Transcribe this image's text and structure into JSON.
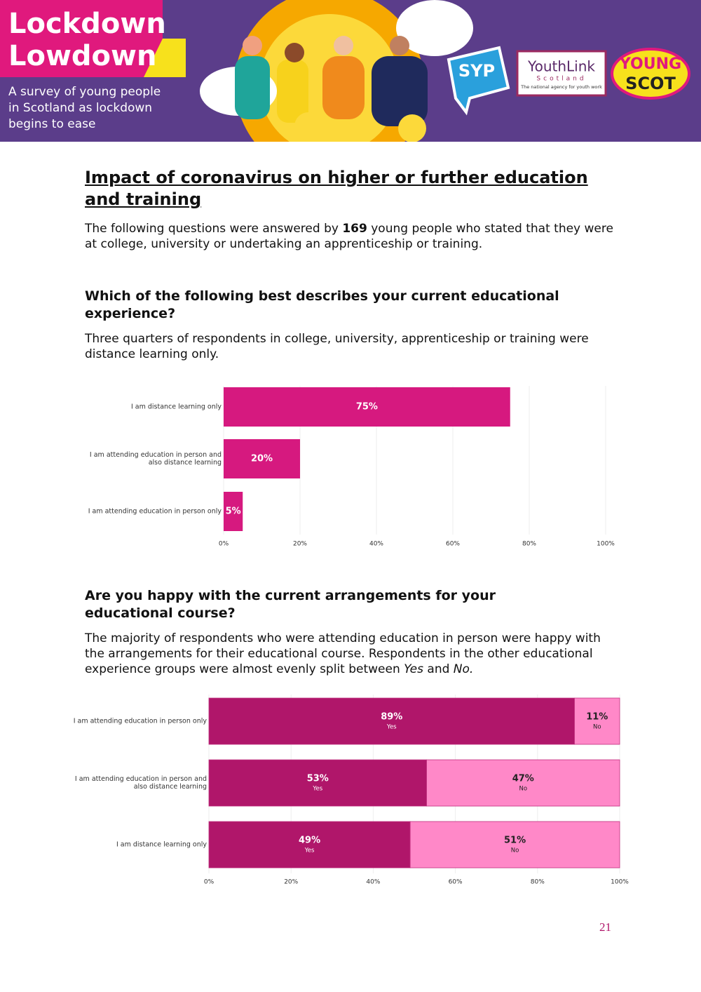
{
  "header": {
    "title_lines": [
      "Lockdown",
      "Lowdown"
    ],
    "subtitle_lines": [
      "A survey of young people",
      "in Scotland as lockdown",
      "begins to ease"
    ],
    "logos": {
      "syp": "SYP",
      "youthlink": "YouthLink",
      "youthlink_sub": "Scotland",
      "youthlink_tag": "The national agency for youth work",
      "youngscot_top": "YOUNG",
      "youngscot_bottom": "SCOT"
    }
  },
  "heading": "Impact of coronavirus on higher or further education and training",
  "intro": {
    "before": "The following questions were answered by ",
    "bold": "169",
    "after": " young people who stated that they were at college, university or undertaking an apprenticeship or training."
  },
  "question1": {
    "title": "Which of the following best describes your current educational experience?",
    "body": "Three quarters of respondents in college, university, apprenticeship or training were distance learning only."
  },
  "question2": {
    "title": "Are you happy with the current arrangements for your educational course?",
    "body": [
      "The majority of respondents who were attending education in person were happy with the arrangements for their educational course. Respondents in the other educational experience groups were almost evenly split between ",
      "Yes",
      " and ",
      "No."
    ]
  },
  "chart_data": [
    {
      "type": "bar",
      "orientation": "horizontal",
      "categories": [
        "I am distance learning only",
        "I am attending education in person and also distance learning",
        "I am attending education in person only"
      ],
      "values": [
        75,
        20,
        5
      ],
      "value_labels": [
        "75%",
        "20%",
        "5%"
      ],
      "color": "#d6197f",
      "xlim": [
        0,
        100
      ],
      "xticks": [
        {
          "value": 0,
          "label": "0%"
        },
        {
          "value": 20,
          "label": "20%"
        },
        {
          "value": 40,
          "label": "40%"
        },
        {
          "value": 60,
          "label": "60%"
        },
        {
          "value": 80,
          "label": "80%"
        },
        {
          "value": 100,
          "label": "100%"
        }
      ],
      "grid": true
    },
    {
      "type": "stacked_bar",
      "orientation": "horizontal",
      "categories": [
        "I am attending education in person only",
        "I am attending education in person and also distance learning",
        "I am distance learning only"
      ],
      "series": [
        {
          "name": "Yes",
          "color": "#b0166a",
          "values": [
            89,
            53,
            49
          ],
          "value_labels": [
            "89%",
            "53%",
            "49%"
          ]
        },
        {
          "name": "No",
          "color": "#ff88c8",
          "values": [
            11,
            47,
            51
          ],
          "value_labels": [
            "11%",
            "47%",
            "51%"
          ]
        }
      ],
      "xlim": [
        0,
        100
      ],
      "xticks": [
        {
          "value": 0,
          "label": "0%"
        },
        {
          "value": 20,
          "label": "20%"
        },
        {
          "value": 40,
          "label": "40%"
        },
        {
          "value": 60,
          "label": "60%"
        },
        {
          "value": 80,
          "label": "80%"
        },
        {
          "value": 100,
          "label": "100%"
        }
      ],
      "grid": true
    }
  ],
  "page_number": "21"
}
